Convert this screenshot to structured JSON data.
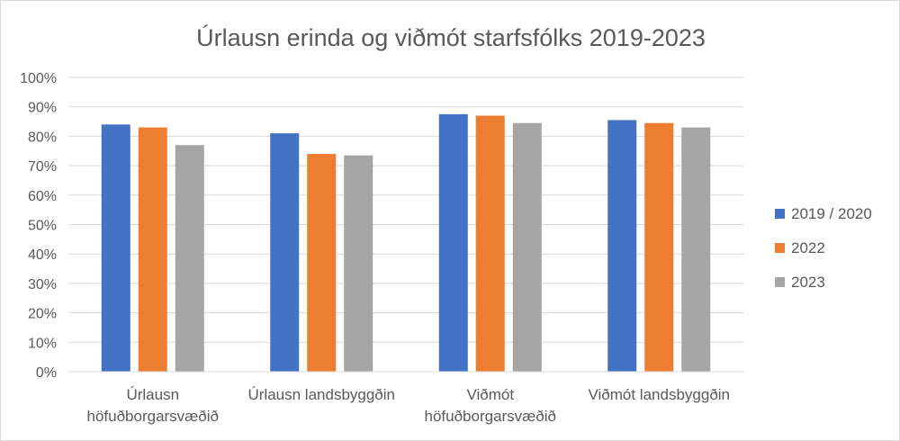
{
  "chart_data": {
    "type": "bar",
    "title": "Úrlausn erinda og viðmót starfsfólks 2019-2023",
    "xlabel": "",
    "ylabel": "",
    "ylim": [
      0,
      100
    ],
    "yticks": [
      "0%",
      "10%",
      "20%",
      "30%",
      "40%",
      "50%",
      "60%",
      "70%",
      "80%",
      "90%",
      "100%"
    ],
    "grid": true,
    "legend_position": "right",
    "categories": [
      [
        "Úrlausn",
        "höfuðborgarsvæðið"
      ],
      [
        "Úrlausn landsbyggðin"
      ],
      [
        "Viðmót",
        "höfuðborgarsvæðið"
      ],
      [
        "Viðmót landsbyggðin"
      ]
    ],
    "series": [
      {
        "name": "2019 / 2020",
        "color": "#4472c4",
        "values": [
          84,
          81,
          87.5,
          85.5
        ]
      },
      {
        "name": "2022",
        "color": "#ed7d31",
        "values": [
          83,
          74,
          87,
          84.5
        ]
      },
      {
        "name": "2023",
        "color": "#a5a5a5",
        "values": [
          77,
          73.5,
          84.5,
          83
        ]
      }
    ]
  }
}
